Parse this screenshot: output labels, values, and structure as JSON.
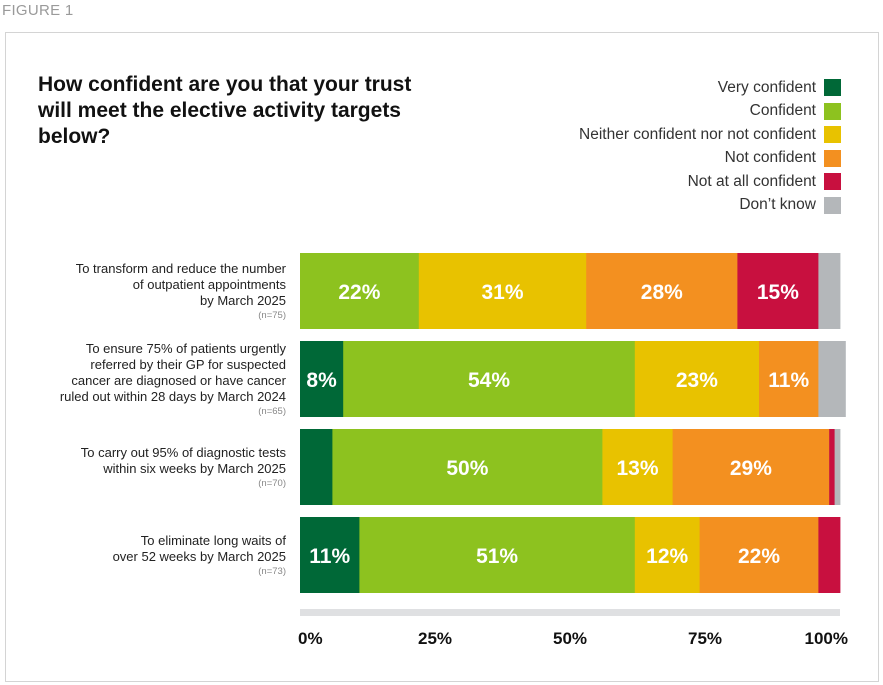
{
  "figure_label": "FIGURE 1",
  "title": "How confident are you that your trust will meet the elective activity targets below?",
  "chart_data": {
    "type": "bar",
    "orientation": "horizontal",
    "stacked": true,
    "title": "How confident are you that your trust will meet the elective activity targets below?",
    "categories": [
      "To transform and reduce the number of outpatient appointments by March 2025",
      "To ensure 75% of patients urgently referred by their GP for suspected cancer are diagnosed or have cancer ruled out within 28 days by March 2024",
      "To carry out 95% of diagnostic tests within six weeks by March 2025",
      "To eliminate long waits of over 52 weeks by March 2025"
    ],
    "category_lines": [
      [
        "To transform and reduce the number",
        "of outpatient appointments",
        "by March 2025"
      ],
      [
        "To ensure 75% of patients urgently",
        "referred by their GP for suspected",
        "cancer are diagnosed or have cancer",
        "ruled out within 28 days by March 2024"
      ],
      [
        "To carry out 95% of diagnostic tests",
        "within six weeks by March 2025"
      ],
      [
        "To eliminate long waits of",
        "over 52 weeks by March 2025"
      ]
    ],
    "sample_sizes": [
      "(n=75)",
      "(n=65)",
      "(n=70)",
      "(n=73)"
    ],
    "series": [
      {
        "name": "Very confident",
        "color": "#006837",
        "values": [
          0,
          8,
          6,
          11
        ],
        "labels": [
          "",
          "8%",
          "",
          "11%"
        ]
      },
      {
        "name": "Confident",
        "color": "#8dc21f",
        "values": [
          22,
          54,
          50,
          51
        ],
        "labels": [
          "22%",
          "54%",
          "50%",
          "51%"
        ]
      },
      {
        "name": "Neither confident nor not confident",
        "color": "#e8c200",
        "values": [
          31,
          23,
          13,
          12
        ],
        "labels": [
          "31%",
          "23%",
          "13%",
          "12%"
        ]
      },
      {
        "name": "Not confident",
        "color": "#f39020",
        "values": [
          28,
          11,
          29,
          22
        ],
        "labels": [
          "28%",
          "11%",
          "29%",
          "22%"
        ]
      },
      {
        "name": "Not at all confident",
        "color": "#c8103f",
        "values": [
          15,
          0,
          1,
          4
        ],
        "labels": [
          "15%",
          "",
          "",
          ""
        ]
      },
      {
        "name": "Don’t know",
        "color": "#b4b7ba",
        "values": [
          4,
          5,
          1,
          0
        ],
        "labels": [
          "",
          "",
          "",
          ""
        ]
      }
    ],
    "xlim": [
      0,
      100
    ],
    "xticks": [
      "0%",
      "25%",
      "50%",
      "75%",
      "100%"
    ],
    "legend_position": "top-right"
  }
}
